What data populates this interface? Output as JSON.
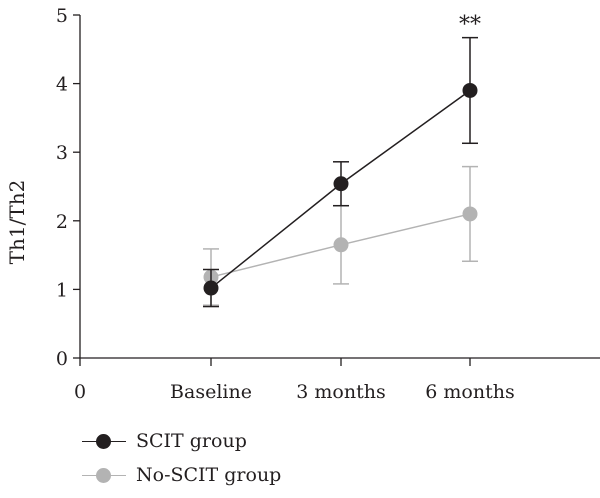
{
  "chart_data": {
    "type": "line",
    "categories": [
      "0",
      "Baseline",
      "3 months",
      "6 months"
    ],
    "x_ticks": [
      "0",
      "Baseline",
      "3 months",
      "6 months"
    ],
    "ylabel": "Th1/Th2",
    "xlabel": "",
    "ylim": [
      0,
      5
    ],
    "y_ticks": [
      0,
      1,
      2,
      3,
      4,
      5
    ],
    "grid": false,
    "legend": "bottom-left",
    "series": [
      {
        "name": "SCIT group",
        "color": "#231f20",
        "x": [
          "Baseline",
          "3 months",
          "6 months"
        ],
        "values": [
          1.02,
          2.54,
          3.9
        ],
        "error": [
          0.27,
          0.32,
          0.77
        ]
      },
      {
        "name": "No-SCIT group",
        "color": "#b3b3b3",
        "x": [
          "Baseline",
          "3 months",
          "6 months"
        ],
        "values": [
          1.18,
          1.65,
          2.1
        ],
        "error": [
          0.41,
          0.57,
          0.69
        ]
      }
    ],
    "annotations": [
      {
        "x": "6 months",
        "text": "**"
      }
    ]
  }
}
